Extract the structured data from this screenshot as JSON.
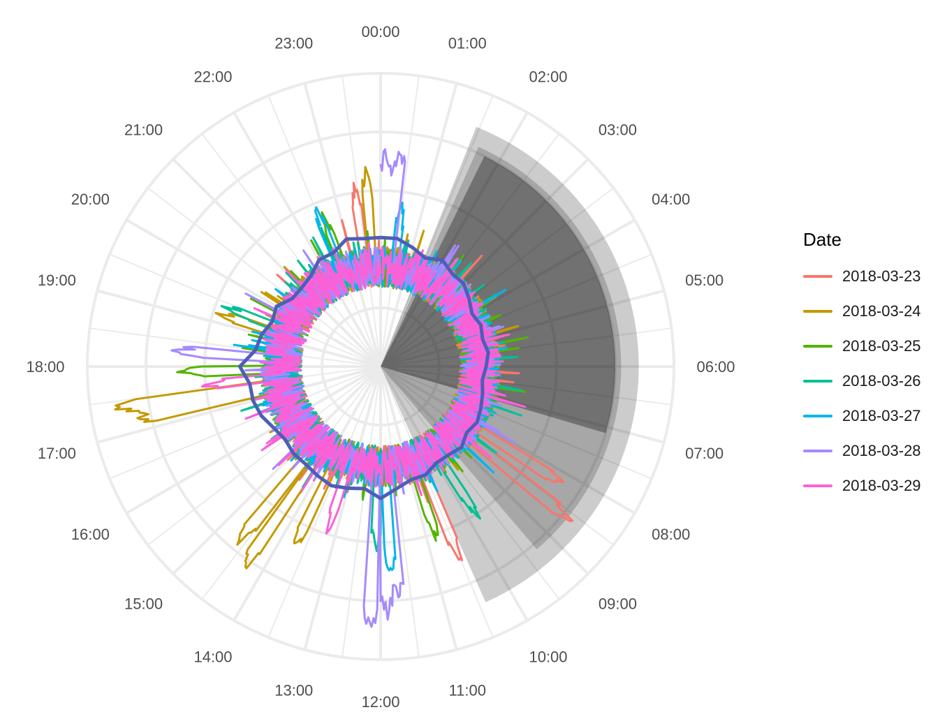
{
  "chart_data": {
    "type": "line",
    "coord": "polar",
    "angular_axis": {
      "unit": "time of day",
      "ticks": [
        "00:00",
        "01:00",
        "02:00",
        "03:00",
        "04:00",
        "05:00",
        "06:00",
        "07:00",
        "08:00",
        "09:00",
        "10:00",
        "11:00",
        "12:00",
        "13:00",
        "14:00",
        "15:00",
        "16:00",
        "17:00",
        "18:00",
        "19:00",
        "20:00",
        "21:00",
        "22:00",
        "23:00"
      ]
    },
    "radial_axis": {
      "min": 0,
      "max": 100,
      "grid": true,
      "labels_shown": false
    },
    "legend": {
      "title": "Date",
      "placement": "right"
    },
    "series": [
      {
        "name": "2018-03-23",
        "color": "#F8766D",
        "profile": [
          [
            0,
            0
          ],
          [
            1,
            0
          ],
          [
            2,
            0
          ],
          [
            3,
            0
          ],
          [
            4,
            0
          ],
          [
            5,
            0
          ],
          [
            6,
            0
          ],
          [
            7,
            0
          ],
          [
            8,
            0
          ],
          [
            9,
            0
          ],
          [
            10,
            0
          ],
          [
            11,
            0
          ],
          [
            12,
            0
          ],
          [
            13,
            0
          ],
          [
            14,
            0
          ],
          [
            15,
            0
          ],
          [
            16,
            0
          ],
          [
            17,
            0
          ],
          [
            18,
            0
          ],
          [
            19,
            0
          ],
          [
            20,
            0
          ],
          [
            21,
            0
          ],
          [
            22,
            0
          ],
          [
            23,
            0
          ]
        ],
        "spikes": [
          [
            23.45,
            61
          ],
          [
            8.6,
            82
          ],
          [
            8.2,
            74
          ],
          [
            10.5,
            71
          ]
        ]
      },
      {
        "name": "2018-03-24",
        "color": "#C49A00",
        "profile": [
          [
            0,
            0
          ],
          [
            1,
            0
          ],
          [
            2,
            0
          ],
          [
            3,
            0
          ],
          [
            4,
            0
          ],
          [
            5,
            0
          ],
          [
            6,
            0
          ],
          [
            7,
            0
          ],
          [
            8,
            0
          ],
          [
            9,
            0
          ],
          [
            10,
            0
          ],
          [
            11,
            0
          ],
          [
            12,
            0
          ],
          [
            13,
            0
          ],
          [
            14,
            0
          ],
          [
            15,
            0
          ],
          [
            16,
            0
          ],
          [
            17,
            0
          ],
          [
            18,
            0
          ],
          [
            19,
            0
          ],
          [
            20,
            0
          ],
          [
            21,
            0
          ],
          [
            22,
            0
          ],
          [
            23,
            0
          ]
        ],
        "spikes": [
          [
            23.7,
            66
          ],
          [
            19.2,
            58
          ],
          [
            17.4,
            91
          ],
          [
            17.2,
            85
          ],
          [
            14.3,
            84
          ],
          [
            14.6,
            76
          ],
          [
            13.7,
            68
          ]
        ]
      },
      {
        "name": "2018-03-25",
        "color": "#53B400",
        "profile": [
          [
            0,
            0
          ],
          [
            1,
            0
          ],
          [
            2,
            0
          ],
          [
            3,
            0
          ],
          [
            4,
            0
          ],
          [
            5,
            0
          ],
          [
            6,
            0
          ],
          [
            7,
            0
          ],
          [
            8,
            0
          ],
          [
            9,
            0
          ],
          [
            10,
            0
          ],
          [
            11,
            0
          ],
          [
            12,
            0
          ],
          [
            13,
            0
          ],
          [
            14,
            0
          ],
          [
            15,
            0
          ],
          [
            16,
            0
          ],
          [
            17,
            0
          ],
          [
            18,
            0
          ],
          [
            19,
            0
          ],
          [
            20,
            0
          ],
          [
            21,
            0
          ],
          [
            22,
            0
          ],
          [
            23,
            0
          ]
        ],
        "spikes": [
          [
            17.9,
            68
          ],
          [
            22.6,
            55
          ],
          [
            10.8,
            62
          ]
        ]
      },
      {
        "name": "2018-03-26",
        "color": "#00C094",
        "profile": [
          [
            0,
            0
          ],
          [
            1,
            0
          ],
          [
            2,
            0
          ],
          [
            3,
            0
          ],
          [
            4,
            0
          ],
          [
            5,
            0
          ],
          [
            6,
            0
          ],
          [
            7,
            0
          ],
          [
            8,
            0
          ],
          [
            9,
            0
          ],
          [
            10,
            0
          ],
          [
            11,
            0
          ],
          [
            12,
            0
          ],
          [
            13,
            0
          ],
          [
            14,
            0
          ],
          [
            15,
            0
          ],
          [
            16,
            0
          ],
          [
            17,
            0
          ],
          [
            18,
            0
          ],
          [
            19,
            0
          ],
          [
            20,
            0
          ],
          [
            21,
            0
          ],
          [
            22,
            0
          ],
          [
            23,
            0
          ]
        ],
        "spikes": [
          [
            19.4,
            56
          ],
          [
            12.1,
            62
          ],
          [
            9.8,
            60
          ]
        ]
      },
      {
        "name": "2018-03-27",
        "color": "#00B6EB",
        "profile": [
          [
            0,
            0
          ],
          [
            1,
            0
          ],
          [
            2,
            0
          ],
          [
            3,
            0
          ],
          [
            4,
            0
          ],
          [
            5,
            0
          ],
          [
            6,
            0
          ],
          [
            7,
            0
          ],
          [
            8,
            0
          ],
          [
            9,
            0
          ],
          [
            10,
            0
          ],
          [
            11,
            0
          ],
          [
            12,
            0
          ],
          [
            13,
            0
          ],
          [
            14,
            0
          ],
          [
            15,
            0
          ],
          [
            16,
            0
          ],
          [
            17,
            0
          ],
          [
            18,
            0
          ],
          [
            19,
            0
          ],
          [
            20,
            0
          ],
          [
            21,
            0
          ],
          [
            22,
            0
          ],
          [
            23,
            0
          ]
        ],
        "spikes": [
          [
            22.5,
            58
          ],
          [
            0.5,
            55
          ],
          [
            11.8,
            70
          ]
        ]
      },
      {
        "name": "2018-03-28",
        "color": "#A58AFF",
        "profile": [
          [
            0,
            0
          ],
          [
            1,
            0
          ],
          [
            2,
            0
          ],
          [
            3,
            0
          ],
          [
            4,
            0
          ],
          [
            5,
            0
          ],
          [
            6,
            0
          ],
          [
            7,
            0
          ],
          [
            8,
            0
          ],
          [
            9,
            0
          ],
          [
            10,
            0
          ],
          [
            11,
            0
          ],
          [
            12,
            0
          ],
          [
            13,
            0
          ],
          [
            14,
            0
          ],
          [
            15,
            0
          ],
          [
            16,
            0
          ],
          [
            17,
            0
          ],
          [
            18,
            0
          ],
          [
            19,
            0
          ],
          [
            20,
            0
          ],
          [
            21,
            0
          ],
          [
            22,
            0
          ],
          [
            23,
            0
          ]
        ],
        "spikes": [
          [
            0.1,
            74
          ],
          [
            0.35,
            74
          ],
          [
            18.3,
            69
          ],
          [
            12.15,
            90
          ],
          [
            11.9,
            84
          ],
          [
            11.7,
            78
          ]
        ]
      },
      {
        "name": "2018-03-29",
        "color": "#FB61D7",
        "profile": [
          [
            0,
            0
          ],
          [
            1,
            0
          ],
          [
            2,
            0
          ],
          [
            3,
            0
          ],
          [
            4,
            0
          ],
          [
            5,
            0
          ],
          [
            6,
            0
          ],
          [
            7,
            0
          ],
          [
            8,
            0
          ],
          [
            9,
            0
          ],
          [
            10,
            0
          ],
          [
            11,
            0
          ],
          [
            12,
            0
          ],
          [
            13,
            0
          ],
          [
            14,
            0
          ],
          [
            15,
            0
          ],
          [
            16,
            0
          ],
          [
            17,
            0
          ],
          [
            18,
            0
          ],
          [
            19,
            0
          ],
          [
            20,
            0
          ],
          [
            21,
            0
          ],
          [
            22,
            0
          ],
          [
            23,
            0
          ]
        ],
        "spikes": [
          [
            17.6,
            60
          ],
          [
            13.2,
            58
          ]
        ]
      }
    ],
    "mean_line": {
      "color": "#4F5DB8",
      "values": [
        [
          0,
          44
        ],
        [
          0.5,
          44
        ],
        [
          1,
          42
        ],
        [
          1.5,
          40
        ],
        [
          2,
          42
        ],
        [
          2.5,
          40
        ],
        [
          3,
          40
        ],
        [
          3.5,
          38
        ],
        [
          4,
          36
        ],
        [
          4.5,
          37
        ],
        [
          5,
          36
        ],
        [
          5.5,
          37
        ],
        [
          6,
          36
        ],
        [
          6.5,
          35
        ],
        [
          7,
          36
        ],
        [
          7.5,
          37
        ],
        [
          8,
          38
        ],
        [
          8.5,
          37
        ],
        [
          9,
          39
        ],
        [
          9.5,
          38
        ],
        [
          10,
          38
        ],
        [
          10.5,
          40
        ],
        [
          11,
          40
        ],
        [
          11.5,
          42
        ],
        [
          12,
          45
        ],
        [
          12.5,
          42
        ],
        [
          13,
          43
        ],
        [
          13.5,
          44
        ],
        [
          14,
          43
        ],
        [
          14.5,
          42
        ],
        [
          15,
          42
        ],
        [
          15.5,
          41
        ],
        [
          16,
          42
        ],
        [
          16.5,
          44
        ],
        [
          17,
          45
        ],
        [
          17.5,
          45
        ],
        [
          18,
          48
        ],
        [
          18.5,
          43
        ],
        [
          19,
          42
        ],
        [
          19.5,
          40
        ],
        [
          20,
          41
        ],
        [
          20.5,
          38
        ],
        [
          21,
          38
        ],
        [
          21.5,
          39
        ],
        [
          22,
          42
        ],
        [
          22.5,
          42
        ],
        [
          23,
          45
        ],
        [
          23.5,
          44
        ]
      ]
    },
    "night_shading": [
      {
        "from": 1.45,
        "to": 10.4,
        "r0": 0,
        "r1": 88,
        "color": "#000000",
        "opacity": 0.2
      },
      {
        "from": 1.6,
        "to": 9.3,
        "r0": 0,
        "r1": 82,
        "color": "#000000",
        "opacity": 0.18
      },
      {
        "from": 1.75,
        "to": 7.1,
        "r0": 0,
        "r1": 80,
        "color": "#000000",
        "opacity": 0.32
      }
    ],
    "inner_blank_radius": 27
  }
}
